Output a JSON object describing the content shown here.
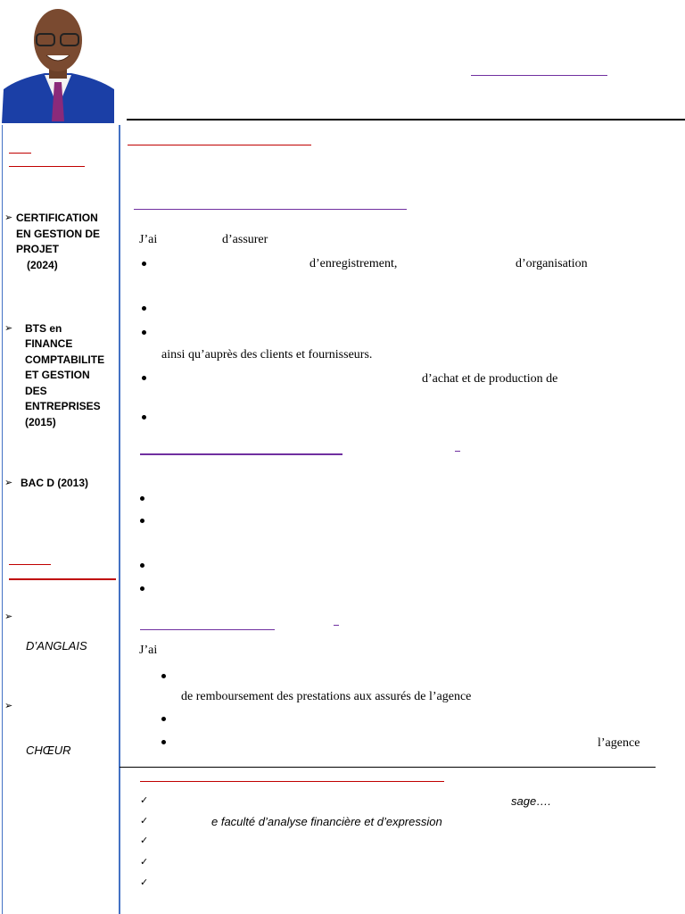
{
  "education": [
    {
      "lines": [
        "CERTIFICATION",
        "EN GESTION DE",
        "PROJET",
        "(2024)"
      ]
    },
    {
      "lines": [
        "BTS en",
        "FINANCE",
        "COMPTABILITE",
        "ET GESTION",
        "DES",
        "ENTREPRISES",
        "(2015)"
      ]
    },
    {
      "lines": [
        "BAC D (2013)"
      ]
    }
  ],
  "languages": [
    "D’ANGLAIS"
  ],
  "hobbies": [
    "CHŒUR"
  ],
  "experience": [
    {
      "texts": [
        "J’ai",
        "d’assurer",
        "d’enregistrement,",
        "d’organisation",
        "ainsi qu’auprès des clients et fournisseurs.",
        "d’achat et de production de"
      ]
    },
    {
      "texts": [
        "J’ai",
        "de remboursement des prestations aux assurés de l’agence",
        "l’agence"
      ]
    }
  ],
  "skills": [
    "sage….",
    "e faculté d’analyse financière et d’expression"
  ]
}
